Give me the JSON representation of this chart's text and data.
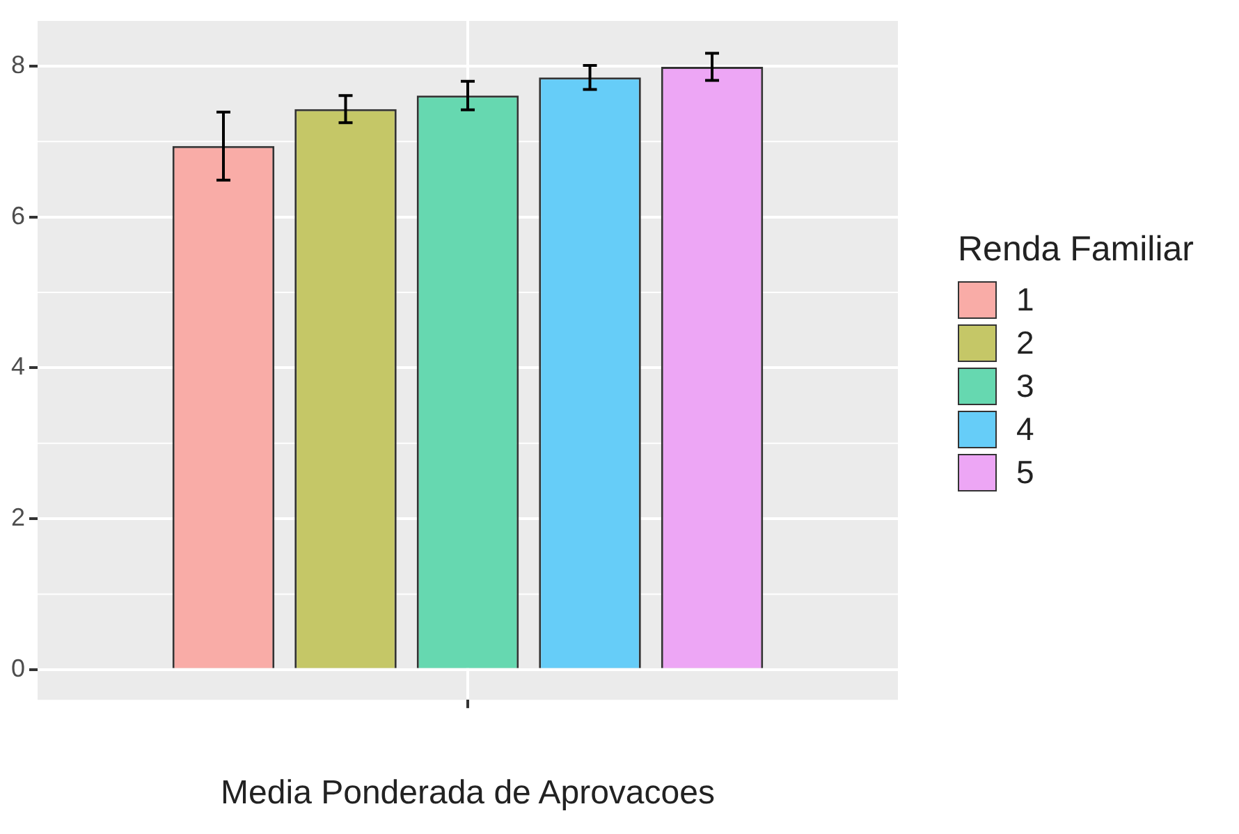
{
  "chart_data": {
    "type": "bar",
    "xlabel": "Media Ponderada de Aprovacoes",
    "legend_title": "Renda Familiar",
    "categories": [
      null
    ],
    "series": [
      {
        "name": "1",
        "color": "#f9aca7",
        "values": [
          6.94
        ],
        "errors": [
          0.45
        ]
      },
      {
        "name": "2",
        "color": "#c5c767",
        "values": [
          7.43
        ],
        "errors": [
          0.18
        ]
      },
      {
        "name": "3",
        "color": "#66d8b0",
        "values": [
          7.61
        ],
        "errors": [
          0.19
        ]
      },
      {
        "name": "4",
        "color": "#66cdf8",
        "values": [
          7.85
        ],
        "errors": [
          0.16
        ]
      },
      {
        "name": "5",
        "color": "#eda6f5",
        "values": [
          7.99
        ],
        "errors": [
          0.18
        ]
      }
    ],
    "ylim": [
      -0.4,
      8.6
    ],
    "yticks": [
      0,
      2,
      4,
      6,
      8
    ],
    "grid": true,
    "legend": "right"
  }
}
